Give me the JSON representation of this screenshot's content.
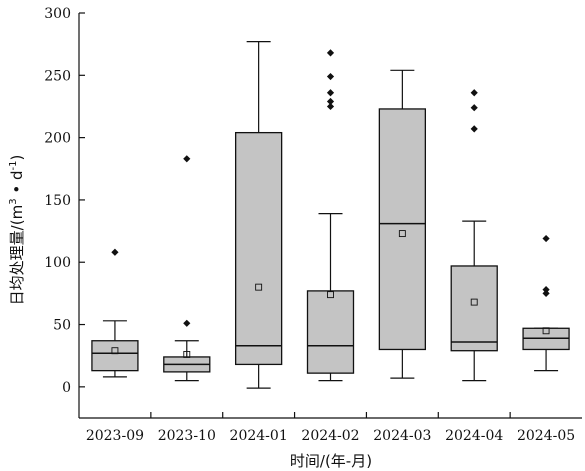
{
  "chart_data": {
    "type": "box",
    "xlabel": "时间/(年-月)",
    "ylabel_main": "日均处理量/(m",
    "ylabel_sup1": "3",
    "ylabel_mid": " • d",
    "ylabel_sup2": "-1",
    "ylabel_end": ")",
    "ylim": [
      -25,
      300
    ],
    "yticks": [
      0,
      50,
      100,
      150,
      200,
      250,
      300
    ],
    "categories": [
      "2023-09",
      "2023-10",
      "2024-01",
      "2024-02",
      "2024-03",
      "2024-04",
      "2024-05"
    ],
    "boxes": [
      {
        "category": "2023-09",
        "whisker_low": 8,
        "q1": 13,
        "median": 27,
        "q3": 37,
        "whisker_high": 53,
        "mean": 29,
        "outliers": [
          108
        ]
      },
      {
        "category": "2023-10",
        "whisker_low": 5,
        "q1": 12,
        "median": 18,
        "q3": 24,
        "whisker_high": 37,
        "mean": 26,
        "outliers": [
          51,
          183
        ]
      },
      {
        "category": "2024-01",
        "whisker_low": -1,
        "q1": 18,
        "median": 33,
        "q3": 204,
        "whisker_high": 277,
        "mean": 80,
        "outliers": []
      },
      {
        "category": "2024-02",
        "whisker_low": 5,
        "q1": 11,
        "median": 33,
        "q3": 77,
        "whisker_high": 139,
        "mean": 74,
        "outliers": [
          225,
          229,
          236,
          249,
          268
        ]
      },
      {
        "category": "2024-03",
        "whisker_low": 7,
        "q1": 30,
        "median": 131,
        "q3": 223,
        "whisker_high": 254,
        "mean": 123,
        "outliers": []
      },
      {
        "category": "2024-04",
        "whisker_low": 5,
        "q1": 29,
        "median": 36,
        "q3": 97,
        "whisker_high": 133,
        "mean": 68,
        "outliers": [
          207,
          224,
          236
        ]
      },
      {
        "category": "2024-05",
        "whisker_low": 13,
        "q1": 30,
        "median": 39,
        "q3": 47,
        "whisker_high": 47,
        "mean": 45,
        "outliers": [
          75,
          78,
          119
        ]
      }
    ],
    "colors": {
      "box_fill": "#c4c4c4",
      "stroke": "#111111",
      "outlier": "#111111"
    }
  }
}
